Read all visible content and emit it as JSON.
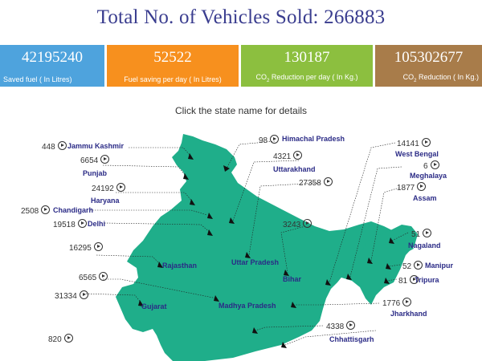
{
  "header": {
    "title": "Total No. of Vehicles Sold: 266883"
  },
  "stats": [
    {
      "value": "42195240",
      "label": "Saved fuel ( In Litres)",
      "color": "#4ea3dd"
    },
    {
      "value": "52522",
      "label": "Fuel saving per day ( In Litres)",
      "color": "#f7901e"
    },
    {
      "value": "130187",
      "label_main": "CO",
      "label_sub": "2",
      "label_rest": " Reduction per day ( In Kg.)",
      "color": "#8cbf3f"
    },
    {
      "value": "105302677",
      "label_main": "CO",
      "label_sub": "2",
      "label_rest": " Reduction ( In Kg.)",
      "color": "#a87c4a"
    }
  ],
  "instruction": "Click the state name for details",
  "map": {
    "fill_color": "#1fae8a",
    "states": [
      {
        "name": "Jammu Kashmir",
        "value": "448"
      },
      {
        "name": "Punjab",
        "value": "6654"
      },
      {
        "name": "Haryana",
        "value": "24192"
      },
      {
        "name": "Chandigarh",
        "value": "2508"
      },
      {
        "name": "Delhi",
        "value": "19518"
      },
      {
        "name": "Rajasthan",
        "value": "16295"
      },
      {
        "name": "Madhya Pradesh",
        "value": "6565"
      },
      {
        "name": "Gujarat",
        "value": "31334"
      },
      {
        "name": "",
        "value": "820"
      },
      {
        "name": "Himachal Pradesh",
        "value": "98"
      },
      {
        "name": "Uttarakhand",
        "value": "4321"
      },
      {
        "name": "Uttar Pradesh",
        "value": "27358"
      },
      {
        "name": "Bihar",
        "value": "3243"
      },
      {
        "name": "West Bengal",
        "value": "14141"
      },
      {
        "name": "Meghalaya",
        "value": "6"
      },
      {
        "name": "Assam",
        "value": "1877"
      },
      {
        "name": "Nagaland",
        "value": "51"
      },
      {
        "name": "Manipur",
        "value": "52"
      },
      {
        "name": "Tripura",
        "value": "81"
      },
      {
        "name": "Jharkhand",
        "value": "1776"
      },
      {
        "name": "Chhattisgarh",
        "value": "4338"
      }
    ]
  }
}
